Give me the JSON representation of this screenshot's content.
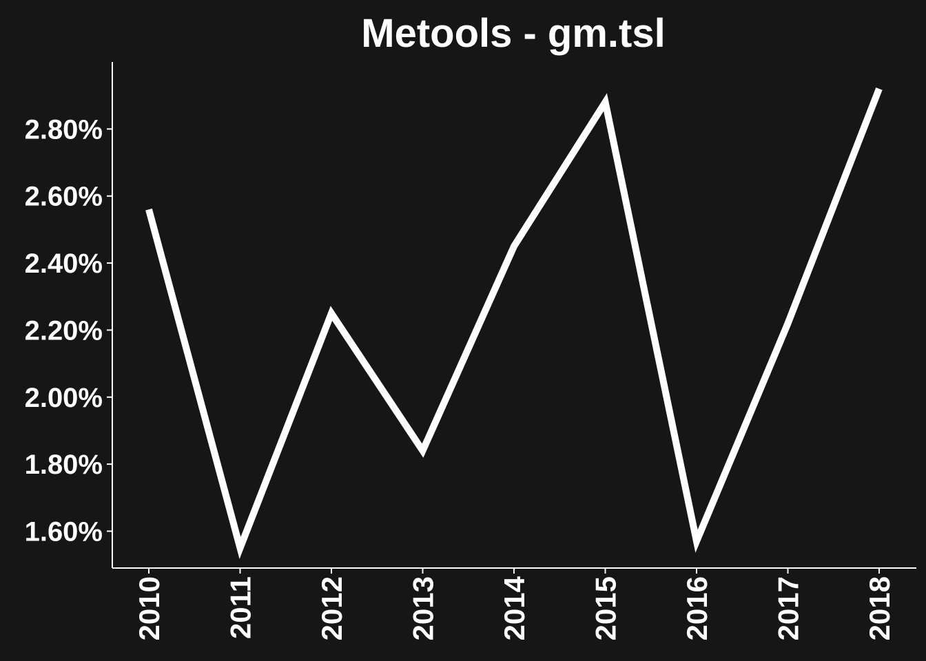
{
  "chart_data": {
    "type": "line",
    "title": "Metools - gm.tsl",
    "xlabel": "",
    "ylabel": "",
    "x": [
      "2010",
      "2011",
      "2012",
      "2013",
      "2014",
      "2015",
      "2016",
      "2017",
      "2018"
    ],
    "series": [
      {
        "values": [
          2.56,
          1.55,
          2.25,
          1.84,
          2.45,
          2.88,
          1.57,
          2.22,
          2.92
        ]
      }
    ],
    "y_ticks": [
      {
        "value": 1.6,
        "label": "1.60%"
      },
      {
        "value": 1.8,
        "label": "1.80%"
      },
      {
        "value": 2.0,
        "label": "2.00%"
      },
      {
        "value": 2.2,
        "label": "2.20%"
      },
      {
        "value": 2.4,
        "label": "2.40%"
      },
      {
        "value": 2.6,
        "label": "2.60%"
      },
      {
        "value": 2.8,
        "label": "2.80%"
      }
    ],
    "ylim": [
      1.49,
      3.0
    ],
    "grid": false,
    "legend": "none",
    "colors": {
      "background": "#161616",
      "line": "#ffffff",
      "axis": "#ffffff",
      "text": "#ffffff"
    }
  }
}
